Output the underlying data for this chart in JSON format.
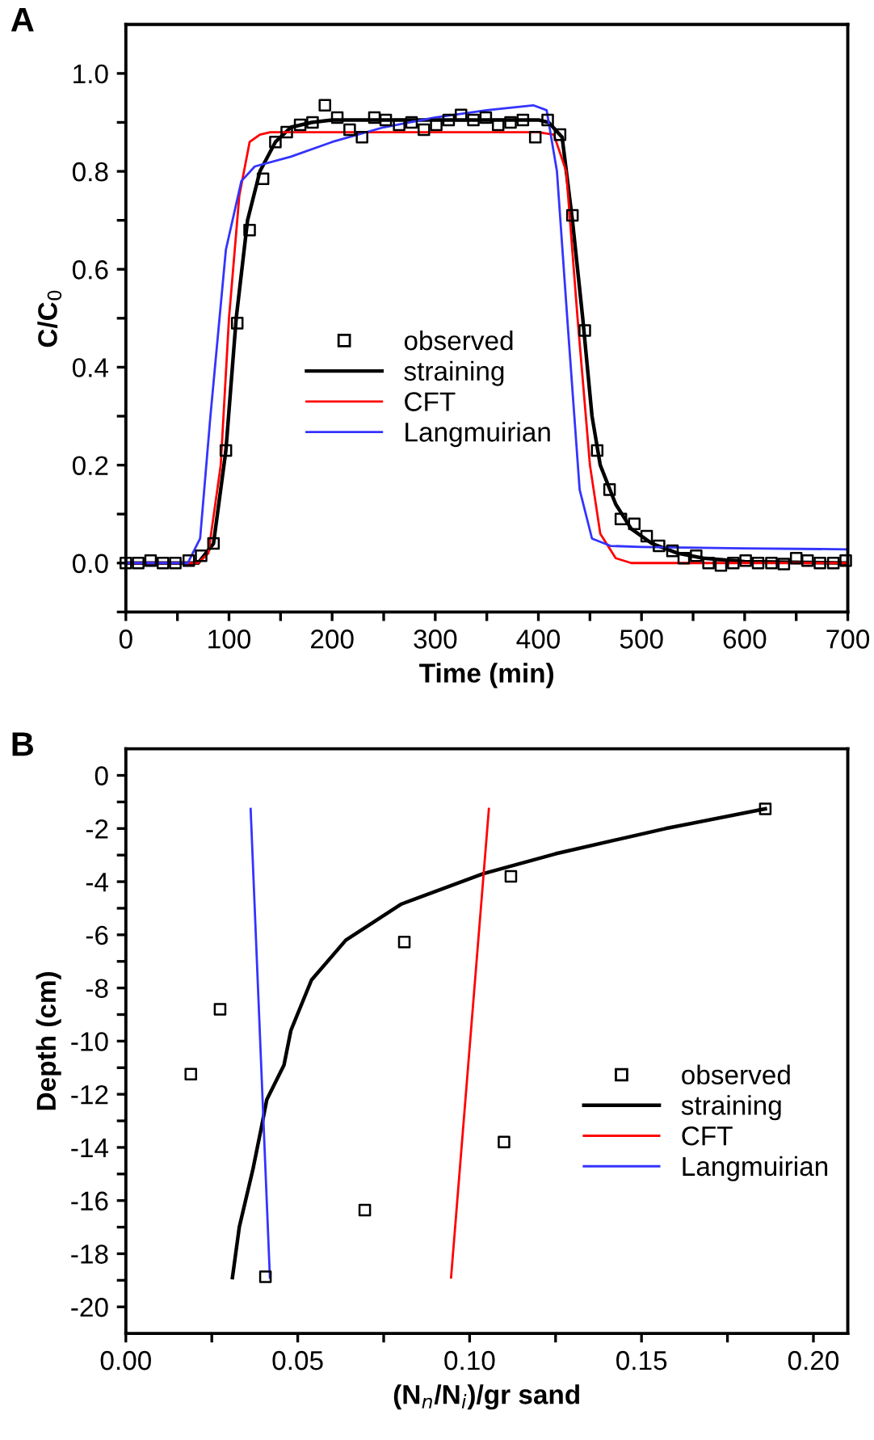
{
  "chart_data": [
    {
      "type": "line",
      "title": "A",
      "xlabel": "Time (min)",
      "ylabel": "C/C$_{0}$",
      "xlim": [
        0,
        700
      ],
      "ylim": [
        -0.1,
        1.1
      ],
      "xticks": [
        0,
        {
          "value": 50,
          "label": null
        },
        100,
        {
          "value": 150,
          "label": null
        },
        200,
        {
          "value": 250,
          "label": null
        },
        300,
        {
          "value": 350,
          "label": null
        },
        400,
        {
          "value": 450,
          "label": null
        },
        500,
        {
          "value": 550,
          "label": null
        },
        600,
        {
          "value": 650,
          "label": null
        },
        700
      ],
      "yticks": [
        {
          "value": -0.1,
          "label": null
        },
        {
          "value": 0.0,
          "label": "0.0"
        },
        {
          "value": 0.1,
          "label": null
        },
        0.2,
        {
          "value": 0.3,
          "label": null
        },
        0.4,
        {
          "value": 0.5,
          "label": null
        },
        0.6,
        {
          "value": 0.7,
          "label": null
        },
        0.8,
        {
          "value": 0.9,
          "label": null
        },
        {
          "value": 1.0,
          "label": "1.0"
        }
      ],
      "legend": "center",
      "grid": false,
      "series": [
        {
          "name": "observed",
          "type": "scatter",
          "marker": "square",
          "color": "#000000",
          "x": [
            0,
            12,
            24,
            36,
            48,
            61,
            73,
            85,
            97,
            108,
            120,
            133,
            145,
            156,
            169,
            181,
            193,
            205,
            217,
            229,
            241,
            252,
            265,
            277,
            289,
            301,
            313,
            325,
            337,
            349,
            361,
            373,
            385,
            397,
            409,
            421,
            433,
            445,
            457,
            469,
            480,
            493,
            505,
            517,
            530,
            541,
            553,
            565,
            577,
            589,
            601,
            613,
            626,
            638,
            650,
            661,
            673,
            686,
            698
          ],
          "values": [
            0.0,
            0.0,
            0.005,
            0.0,
            0.0,
            0.005,
            0.015,
            0.04,
            0.23,
            0.49,
            0.68,
            0.785,
            0.86,
            0.88,
            0.895,
            0.9,
            0.935,
            0.91,
            0.885,
            0.87,
            0.91,
            0.905,
            0.895,
            0.9,
            0.885,
            0.895,
            0.905,
            0.915,
            0.905,
            0.91,
            0.895,
            0.9,
            0.905,
            0.87,
            0.905,
            0.875,
            0.71,
            0.475,
            0.23,
            0.15,
            0.09,
            0.08,
            0.055,
            0.035,
            0.025,
            0.01,
            0.015,
            0.0,
            -0.005,
            0.0,
            0.005,
            0.0,
            0.0,
            -0.002,
            0.01,
            0.005,
            0.0,
            0.0,
            0.005
          ]
        },
        {
          "name": "straining",
          "marker": "none",
          "color": "#000000",
          "x": [
            0,
            70,
            85,
            97,
            107,
            118,
            130,
            145,
            160,
            180,
            200,
            300,
            400,
            410,
            423,
            433,
            443,
            452,
            460,
            475,
            490,
            510,
            535,
            560,
            600,
            700
          ],
          "values": [
            0.0,
            0.0,
            0.04,
            0.23,
            0.5,
            0.7,
            0.8,
            0.86,
            0.89,
            0.9,
            0.905,
            0.905,
            0.905,
            0.9,
            0.87,
            0.7,
            0.5,
            0.3,
            0.2,
            0.12,
            0.07,
            0.04,
            0.02,
            0.01,
            0.003,
            0.0
          ]
        },
        {
          "name": "CFT",
          "marker": "none",
          "color": "#ff0000",
          "x": [
            0,
            70,
            80,
            92,
            100,
            110,
            120,
            130,
            140,
            400,
            415,
            427,
            438,
            450,
            460,
            475,
            490,
            700
          ],
          "values": [
            0.0,
            0.0,
            0.02,
            0.2,
            0.5,
            0.75,
            0.86,
            0.875,
            0.88,
            0.88,
            0.875,
            0.8,
            0.5,
            0.2,
            0.06,
            0.01,
            0.0,
            0.0
          ]
        },
        {
          "name": "Langmuirian",
          "marker": "none",
          "color": "#3333ff",
          "x": [
            0,
            60,
            72,
            82,
            97,
            112,
            125,
            160,
            200,
            250,
            300,
            350,
            395,
            408,
            418,
            428,
            440,
            452,
            470,
            500,
            600,
            700
          ],
          "values": [
            0.0,
            0.0,
            0.05,
            0.3,
            0.64,
            0.78,
            0.81,
            0.83,
            0.86,
            0.89,
            0.91,
            0.925,
            0.935,
            0.925,
            0.8,
            0.5,
            0.15,
            0.05,
            0.035,
            0.033,
            0.03,
            0.028
          ]
        }
      ]
    },
    {
      "type": "line",
      "title": "B",
      "xlabel": "(N$_{n}$/N$_{i}$)/gr sand",
      "ylabel": "Depth (cm)",
      "xlim": [
        0,
        0.21
      ],
      "ylim": [
        -21,
        1
      ],
      "xticks": [
        {
          "value": 0,
          "label": "0.00"
        },
        {
          "value": 0.025,
          "label": null
        },
        {
          "value": 0.05,
          "label": "0.05"
        },
        {
          "value": 0.075,
          "label": null
        },
        {
          "value": 0.1,
          "label": "0.10"
        },
        {
          "value": 0.125,
          "label": null
        },
        {
          "value": 0.15,
          "label": "0.15"
        },
        {
          "value": 0.175,
          "label": null
        },
        {
          "value": 0.2,
          "label": "0.20"
        }
      ],
      "yticks": [
        -20,
        {
          "value": -19,
          "label": null
        },
        -18,
        {
          "value": -17,
          "label": null
        },
        -16,
        {
          "value": -15,
          "label": null
        },
        -14,
        {
          "value": -13,
          "label": null
        },
        -12,
        {
          "value": -11,
          "label": null
        },
        -10,
        {
          "value": -9,
          "label": null
        },
        -8,
        {
          "value": -7,
          "label": null
        },
        -6,
        {
          "value": -5,
          "label": null
        },
        -4,
        {
          "value": -3,
          "label": null
        },
        -2,
        {
          "value": -1,
          "label": null
        },
        0
      ],
      "legend": "center right",
      "grid": false,
      "series": [
        {
          "name": "observed",
          "type": "scatter",
          "marker": "square",
          "color": "#000000",
          "x": [
            0.186,
            0.112,
            0.081,
            0.0274,
            0.0189,
            0.11,
            0.0695,
            0.0406
          ],
          "values": [
            -1.26,
            -3.8,
            -6.27,
            -8.8,
            -11.24,
            -13.8,
            -16.36,
            -18.87
          ]
        },
        {
          "name": "straining",
          "marker": "none",
          "color": "#000000",
          "x": [
            0.031,
            0.033,
            0.037,
            0.0395,
            0.041,
            0.046,
            0.048,
            0.054,
            0.064,
            0.08,
            0.104,
            0.125,
            0.157,
            0.186
          ],
          "values": [
            -18.9,
            -17,
            -14.8,
            -13.2,
            -12.2,
            -10.9,
            -9.6,
            -7.7,
            -6.2,
            -4.85,
            -3.7,
            -2.95,
            -2.0,
            -1.26
          ]
        },
        {
          "name": "CFT",
          "marker": "none",
          "color": "#ff0000",
          "x": [
            0.1056,
            0.0946
          ],
          "values": [
            -1.26,
            -18.9
          ]
        },
        {
          "name": "Langmuirian",
          "marker": "none",
          "color": "#3333ff",
          "x": [
            0.0363,
            0.0419
          ],
          "values": [
            -1.26,
            -18.9
          ]
        }
      ]
    }
  ]
}
